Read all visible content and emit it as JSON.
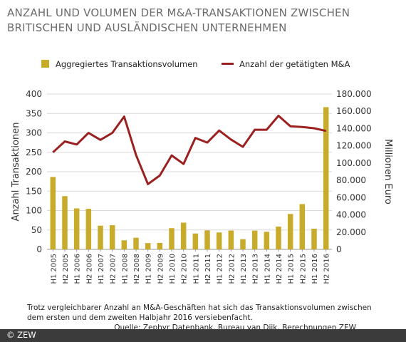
{
  "title": "ANZAHL UND VOLUMEN DER M&A-TRANSAKTIONEN ZWISCHEN BRITISCHEN UND AUSLÄNDISCHEN UNTERNEHMEN",
  "note": "Trotz vergleichbarer Anzahl an M&A-Geschäften hat sich das Transaktionsvolumen zwischen dem ersten und dem zweiten Halbjahr 2016 versiebenfacht.",
  "source": "Quelle: Zephyr Datenbank, Bureau van Dijk, Berechnungen ZEW",
  "copyright": "© ZEW",
  "colors": {
    "bar": "#c9ab2b",
    "line": "#9b2121",
    "grid": "#d9d9d9",
    "axis": "#9a9a9a"
  },
  "chart_data": {
    "type": "bar+line",
    "categories": [
      "H1 2005",
      "H2 2005",
      "H1 2006",
      "H2 2006",
      "H1 2007",
      "H2 2007",
      "H1 2008",
      "H2 2008",
      "H1 2009",
      "H2 2009",
      "H1 2010",
      "H2 2010",
      "H1 2011",
      "H2 2011",
      "H1 2012",
      "H2 2012",
      "H1 2013",
      "H2 2013",
      "H1 2014",
      "H2 2014",
      "H1 2015",
      "H2 2015",
      "H1 2016",
      "H2 2016"
    ],
    "series": [
      {
        "name": "Aggregiertes Transaktionsvolumen",
        "type": "bar",
        "axis": "right",
        "values": [
          84000,
          61700,
          47500,
          47000,
          27500,
          28000,
          10500,
          13500,
          7300,
          7500,
          24600,
          31000,
          18400,
          22000,
          19600,
          21800,
          11800,
          21700,
          20400,
          26400,
          41000,
          52500,
          23900,
          164800
        ]
      },
      {
        "name": "Anzahl der getätigten M&A",
        "type": "line",
        "axis": "left",
        "values": [
          250,
          278,
          270,
          300,
          282,
          300,
          342,
          243,
          168,
          190,
          242,
          220,
          287,
          275,
          306,
          283,
          264,
          308,
          308,
          344,
          317,
          315,
          312,
          305
        ]
      }
    ],
    "ylabel": "Anzahl Transaktionen",
    "ylabel_right": "Millionen Euro",
    "ylim": [
      0,
      400
    ],
    "ylim_right": [
      0,
      180000
    ],
    "yticks": [
      "0",
      "50",
      "100",
      "150",
      "200",
      "250",
      "300",
      "350",
      "400"
    ],
    "yticks_right": [
      "0",
      "20.000",
      "40.000",
      "60.000",
      "80.000",
      "100.000",
      "120.000",
      "140.000",
      "160.000",
      "180.000"
    ],
    "grid": true,
    "legend": "top"
  }
}
